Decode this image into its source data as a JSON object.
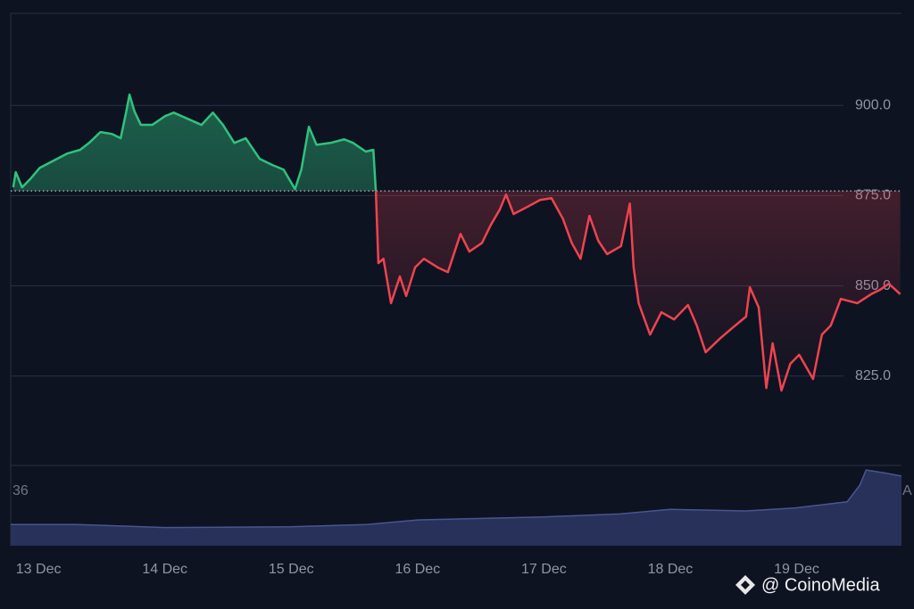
{
  "chart_data": {
    "type": "line",
    "series": [
      {
        "color_up": "#2fc27e",
        "color_down": "#f0434f",
        "x": [
          -0.2,
          -0.18,
          -0.13,
          -0.06,
          0.01,
          0.12,
          0.23,
          0.33,
          0.4,
          0.49,
          0.58,
          0.65,
          0.69,
          0.72,
          0.76,
          0.81,
          0.9,
          1.0,
          1.07,
          1.18,
          1.29,
          1.38,
          1.46,
          1.55,
          1.64,
          1.75,
          1.85,
          1.94,
          2.03,
          2.08,
          2.14,
          2.2,
          2.31,
          2.42,
          2.49,
          2.59,
          2.65,
          2.67,
          2.69,
          2.73,
          2.79,
          2.86,
          2.91,
          2.98,
          3.05,
          3.16,
          3.24,
          3.34,
          3.41,
          3.51,
          3.58,
          3.65,
          3.7,
          3.76,
          3.87,
          3.97,
          4.06,
          4.15,
          4.22,
          4.29,
          4.36,
          4.43,
          4.5,
          4.61,
          4.68,
          4.71,
          4.75,
          4.84,
          4.93,
          5.03,
          5.14,
          5.21,
          5.28,
          5.39,
          5.49,
          5.6,
          5.63,
          5.7,
          5.76,
          5.81,
          5.88,
          5.95,
          6.02,
          6.13,
          6.2,
          6.27,
          6.35,
          6.48,
          6.59,
          6.66,
          6.73,
          6.82
        ],
        "values": [
          877.3,
          881.5,
          877.3,
          879.8,
          882.7,
          884.7,
          886.7,
          887.7,
          889.6,
          892.6,
          892.1,
          890.9,
          897.5,
          903,
          898.3,
          894.6,
          894.6,
          897,
          898,
          896.3,
          894.6,
          898,
          894.6,
          889.6,
          890.9,
          885.2,
          883.5,
          882.2,
          876.8,
          882.2,
          894.1,
          889.1,
          889.6,
          890.6,
          889.6,
          887.2,
          887.7,
          876,
          856.3,
          857.5,
          845.2,
          852.6,
          847.2,
          855.1,
          857.5,
          855.1,
          853.8,
          864.4,
          859.5,
          861.9,
          866.9,
          871.1,
          875.3,
          869.9,
          871.9,
          873.8,
          874.3,
          868.6,
          861.9,
          857.5,
          869.4,
          862.5,
          858.8,
          861,
          872.8,
          855.1,
          845.2,
          836.5,
          842.7,
          840.7,
          844.7,
          839,
          831.6,
          835.3,
          838.3,
          841.5,
          849.6,
          844,
          821.7,
          834.1,
          821,
          828.4,
          830.9,
          824.2,
          836.5,
          839,
          846.4,
          845.2,
          847.7,
          848.9,
          850.6,
          847.7
        ]
      }
    ],
    "baseline": 876.3,
    "xlim": [
      -0.22,
      6.83
    ],
    "xticks": [
      {
        "value": 0,
        "label": "13 Dec"
      },
      {
        "value": 1,
        "label": "14 Dec"
      },
      {
        "value": 2,
        "label": "15 Dec"
      },
      {
        "value": 3,
        "label": "16 Dec"
      },
      {
        "value": 4,
        "label": "17 Dec"
      },
      {
        "value": 5,
        "label": "18 Dec"
      },
      {
        "value": 6,
        "label": "19 Dec"
      }
    ],
    "ylim": [
      800,
      925
    ],
    "yticks": [
      {
        "value": 825,
        "label": "825.0"
      },
      {
        "value": 850,
        "label": "850.0"
      },
      {
        "value": 875,
        "label": "875.0"
      },
      {
        "value": 900,
        "label": "900.0"
      }
    ],
    "grid": true,
    "volume": {
      "color": "#2b3560",
      "x": [
        -0.22,
        0.3,
        1.0,
        2.0,
        2.6,
        3.0,
        4.0,
        4.6,
        5.0,
        5.6,
        6.0,
        6.4,
        6.5,
        6.55,
        6.7,
        6.83
      ],
      "values": [
        14,
        14,
        12,
        12.5,
        14,
        17,
        19,
        21,
        24,
        23,
        25,
        29,
        40,
        50,
        48,
        46
      ],
      "ylim": [
        0,
        53
      ],
      "yticks": [
        36
      ],
      "right_label": "A"
    },
    "watermark": "@ CoinoMedia"
  }
}
